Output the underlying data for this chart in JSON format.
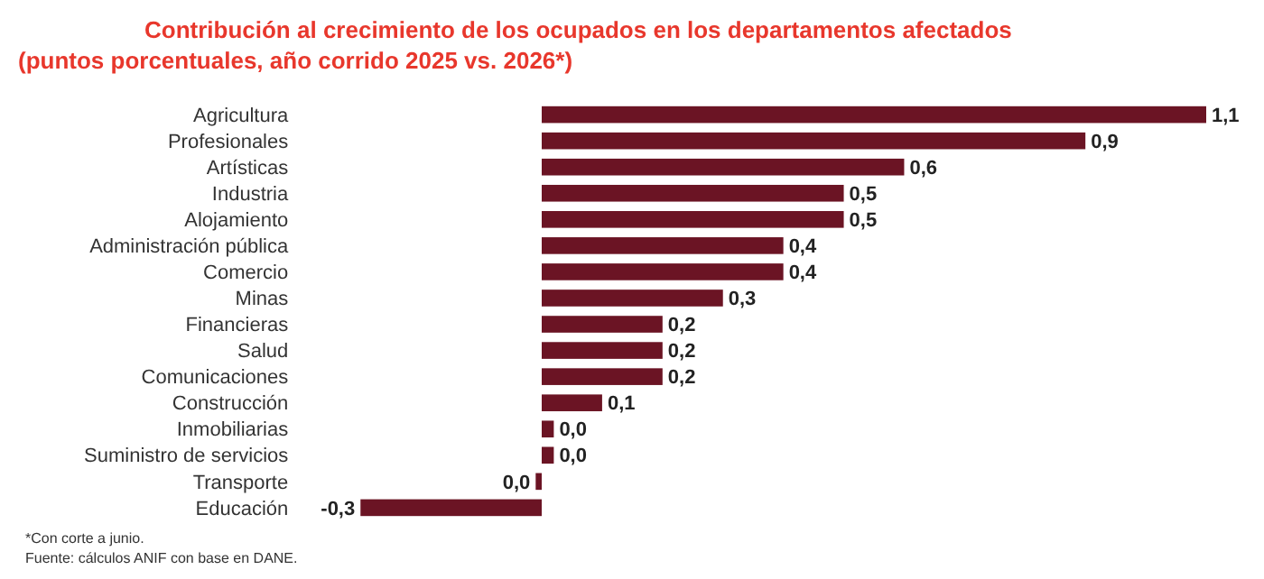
{
  "chart_data": {
    "type": "bar",
    "orientation": "horizontal",
    "title": "Contribución al crecimiento de los ocupados en los departamentos afectados",
    "subtitle": "(puntos porcentuales, año corrido 2025 vs. 2026*)",
    "categories": [
      "Agricultura",
      "Profesionales",
      "Artísticas",
      "Industria",
      "Alojamiento",
      "Administración pública",
      "Comercio",
      "Minas",
      "Financieras",
      "Salud",
      "Comunicaciones",
      "Construcción",
      "Inmobiliarias",
      "Suministro de servicios",
      "Transporte",
      "Educación"
    ],
    "values": [
      1.1,
      0.9,
      0.6,
      0.5,
      0.5,
      0.4,
      0.4,
      0.3,
      0.2,
      0.2,
      0.2,
      0.1,
      0.02,
      0.02,
      -0.01,
      -0.3
    ],
    "value_labels": [
      "1,1",
      "0,9",
      "0,6",
      "0,5",
      "0,5",
      "0,4",
      "0,4",
      "0,3",
      "0,2",
      "0,2",
      "0,2",
      "0,1",
      "0,0",
      "0,0",
      "0,0",
      "-0,3"
    ],
    "color": "#6b1424",
    "annotations": [
      "*Con corte a junio.",
      "Fuente: cálculos ANIF con base en DANE."
    ]
  }
}
